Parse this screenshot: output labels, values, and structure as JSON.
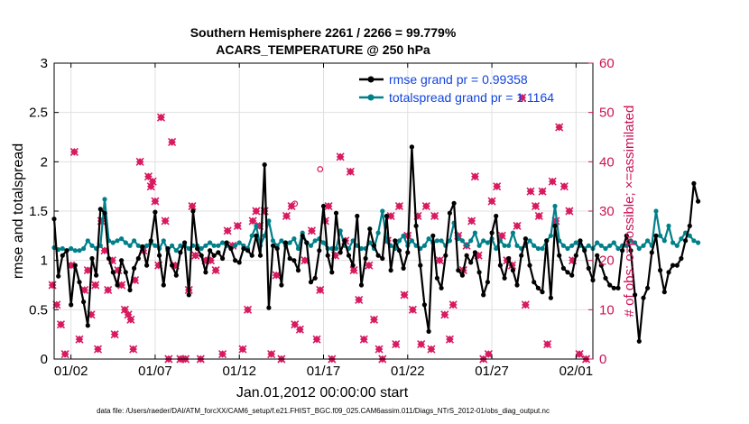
{
  "chart_data": {
    "type": "line",
    "title_line1": "Southern Hemisphere 2261 / 2266 = 99.779%",
    "title_line2": "ACARS_TEMPERATURE @ 250 hPa",
    "ylabel_left": "rmse and totalspread",
    "ylabel_right": "# of obs: o=possible; ×=assimilated",
    "xlabel": "Jan.01,2012 00:00:00 start",
    "footnote": "data file: /Users/raeder/DAI/ATM_forcXX/CAM6_setup/f.e21.FHIST_BGC.f09_025.CAM6assim.011/Diags_NTrS_2012-01/obs_diag_output.nc",
    "x_range_days": [
      0,
      32
    ],
    "ylim_left": [
      0,
      3
    ],
    "ylim_right": [
      0,
      60
    ],
    "x_ticks": [
      {
        "day": 1,
        "label": "01/02"
      },
      {
        "day": 6,
        "label": "01/07"
      },
      {
        "day": 11,
        "label": "01/12"
      },
      {
        "day": 16,
        "label": "01/17"
      },
      {
        "day": 21,
        "label": "01/22"
      },
      {
        "day": 26,
        "label": "01/27"
      },
      {
        "day": 31,
        "label": "02/01"
      }
    ],
    "y_ticks_left": [
      "0",
      "0.5",
      "1",
      "1.5",
      "2",
      "2.5",
      "3"
    ],
    "y_ticks_right": [
      "0",
      "10",
      "20",
      "30",
      "40",
      "50",
      "60"
    ],
    "legend": [
      {
        "name": "rmse grand pr = 0.99358",
        "color": "#000000"
      },
      {
        "name": "totalspread grand pr = 1.1164",
        "color": "#00808a"
      }
    ],
    "colors": {
      "rmse": "#000000",
      "spread": "#00808a",
      "obs": "#d81b60",
      "right_axis": "#cc1155",
      "legend_text": "#1144dd",
      "grid": "#e0e0e0"
    },
    "series": [
      {
        "name": "rmse",
        "x_start_day": 0,
        "x_step_day": 0.25,
        "values": [
          1.42,
          0.84,
          1.05,
          1.1,
          0.55,
          0.95,
          0.78,
          0.58,
          0.34,
          1.02,
          0.85,
          1.52,
          1.48,
          1.02,
          0.88,
          0.75,
          1.0,
          0.88,
          0.7,
          0.92,
          1.02,
          1.14,
          0.95,
          1.2,
          1.49,
          1.05,
          0.75,
          1.12,
          0.95,
          0.85,
          1.08,
          1.18,
          0.65,
          1.5,
          1.12,
          1.05,
          0.88,
          1.1,
          1.05,
          1.08,
          1.02,
          1.18,
          1.12,
          1.0,
          0.98,
          1.12,
          1.1,
          1.05,
          1.25,
          1.05,
          1.97,
          0.52,
          1.15,
          1.12,
          0.75,
          1.18,
          1.02,
          1.0,
          0.9,
          1.25,
          1.18,
          0.78,
          0.82,
          1.1,
          1.55,
          1.05,
          0.88,
          1.48,
          1.08,
          1.2,
          1.05,
          0.95,
          1.45,
          0.75,
          1.02,
          1.32,
          1.15,
          1.05,
          1.02,
          1.45,
          0.9,
          1.2,
          1.1,
          0.92,
          1.08,
          2.15,
          1.35,
          0.95,
          0.55,
          0.28,
          1.25,
          0.82,
          0.72,
          1.05,
          1.48,
          1.58,
          0.9,
          0.85,
          1.05,
          0.98,
          1.08,
          0.88,
          0.65,
          0.78,
          1.28,
          1.45,
          0.95,
          0.82,
          1.02,
          0.9,
          0.75,
          1.05,
          1.22,
          0.95,
          0.78,
          0.72,
          0.68,
          1.2,
          0.62,
          1.35,
          1.05,
          0.92,
          0.88,
          0.85,
          1.05,
          1.2,
          1.1,
          0.92,
          0.8,
          1.05,
          0.95,
          0.82,
          0.75,
          0.72,
          0.72,
          1.1,
          1.25,
          1.1,
          0.65,
          0.18,
          0.62,
          0.72,
          1.08,
          1.25,
          0.9,
          0.68,
          0.88,
          0.95,
          0.95,
          1.02,
          1.2,
          1.35,
          1.78,
          1.6
        ]
      },
      {
        "name": "totalspread",
        "x_start_day": 0,
        "x_step_day": 0.25,
        "values": [
          1.13,
          1.11,
          1.12,
          1.1,
          1.12,
          1.1,
          1.1,
          1.12,
          1.2,
          1.15,
          1.12,
          1.15,
          1.62,
          1.2,
          1.18,
          1.2,
          1.22,
          1.18,
          1.15,
          1.2,
          1.15,
          1.12,
          1.15,
          1.18,
          1.15,
          1.12,
          1.2,
          1.1,
          1.15,
          1.1,
          1.15,
          1.15,
          1.12,
          1.15,
          1.15,
          1.12,
          1.15,
          1.18,
          1.15,
          1.15,
          1.18,
          1.15,
          1.12,
          1.15,
          1.18,
          1.15,
          1.12,
          1.25,
          1.35,
          1.15,
          1.25,
          1.4,
          1.2,
          1.15,
          1.2,
          1.15,
          1.18,
          1.22,
          1.12,
          1.28,
          1.18,
          1.15,
          1.2,
          1.22,
          1.18,
          1.12,
          1.12,
          1.12,
          1.3,
          1.15,
          1.12,
          1.2,
          1.15,
          1.12,
          1.12,
          1.18,
          1.12,
          1.28,
          1.5,
          1.2,
          1.15,
          1.12,
          1.2,
          1.25,
          1.15,
          1.2,
          1.15,
          1.12,
          1.15,
          1.22,
          1.18,
          1.2,
          1.2,
          1.15,
          1.2,
          1.38,
          1.22,
          1.2,
          1.15,
          1.2,
          1.28,
          1.15,
          1.2,
          1.18,
          1.22,
          1.12,
          1.2,
          1.15,
          1.15,
          1.28,
          1.15,
          1.12,
          1.15,
          1.2,
          1.15,
          1.12,
          1.12,
          1.2,
          1.25,
          1.55,
          1.2,
          1.15,
          1.12,
          1.15,
          1.18,
          1.15,
          1.12,
          1.15,
          1.12,
          1.18,
          1.15,
          1.12,
          1.15,
          1.18,
          1.12,
          1.15,
          1.15,
          1.2,
          1.18,
          1.12,
          1.15,
          1.2,
          1.15,
          1.5,
          1.25,
          1.2,
          1.35,
          1.18,
          1.15,
          1.22,
          1.28,
          1.25,
          1.2,
          1.18
        ]
      },
      {
        "name": "obs_assimilated",
        "points": [
          [
            -0.1,
            15
          ],
          [
            0.15,
            11
          ],
          [
            0.4,
            7
          ],
          [
            0.65,
            1
          ],
          [
            1.0,
            19
          ],
          [
            1.2,
            42
          ],
          [
            1.5,
            4
          ],
          [
            1.8,
            14
          ],
          [
            2.0,
            18
          ],
          [
            2.2,
            9
          ],
          [
            2.45,
            15
          ],
          [
            2.6,
            2
          ],
          [
            2.8,
            28
          ],
          [
            3.0,
            22
          ],
          [
            3.2,
            14
          ],
          [
            3.45,
            20
          ],
          [
            3.6,
            5
          ],
          [
            3.8,
            18
          ],
          [
            4.0,
            15
          ],
          [
            4.2,
            10
          ],
          [
            4.4,
            9
          ],
          [
            4.55,
            8
          ],
          [
            4.7,
            2
          ],
          [
            4.8,
            16
          ],
          [
            5.1,
            40
          ],
          [
            5.3,
            22
          ],
          [
            5.6,
            37
          ],
          [
            5.75,
            35
          ],
          [
            5.85,
            36
          ],
          [
            6.0,
            32
          ],
          [
            6.2,
            19
          ],
          [
            6.35,
            49
          ],
          [
            6.6,
            28
          ],
          [
            6.8,
            0
          ],
          [
            7.0,
            44
          ],
          [
            7.2,
            19
          ],
          [
            7.5,
            0
          ],
          [
            7.8,
            0
          ],
          [
            8.0,
            14
          ],
          [
            8.2,
            31
          ],
          [
            8.4,
            21
          ],
          [
            8.7,
            0
          ],
          [
            9.0,
            20
          ],
          [
            9.3,
            20
          ],
          [
            9.6,
            18
          ],
          [
            10.0,
            1
          ],
          [
            10.3,
            26
          ],
          [
            10.6,
            23
          ],
          [
            10.9,
            27
          ],
          [
            11.2,
            2
          ],
          [
            11.5,
            10
          ],
          [
            11.8,
            28
          ],
          [
            12.0,
            30
          ],
          [
            12.2,
            27
          ],
          [
            12.5,
            30
          ],
          [
            12.9,
            1
          ],
          [
            13.2,
            17
          ],
          [
            13.5,
            0
          ],
          [
            13.8,
            29
          ],
          [
            14.1,
            31
          ],
          [
            14.3,
            7
          ],
          [
            14.6,
            6
          ],
          [
            14.9,
            20
          ],
          [
            15.3,
            26
          ],
          [
            15.6,
            4
          ],
          [
            15.8,
            14
          ],
          [
            16.1,
            28
          ],
          [
            16.3,
            31
          ],
          [
            16.5,
            0
          ],
          [
            16.7,
            21
          ],
          [
            17.0,
            41
          ],
          [
            17.3,
            24
          ],
          [
            17.6,
            38
          ],
          [
            17.8,
            18
          ],
          [
            18.1,
            12
          ],
          [
            18.4,
            4
          ],
          [
            18.7,
            19
          ],
          [
            19.0,
            8
          ],
          [
            19.3,
            2
          ],
          [
            19.5,
            0
          ],
          [
            19.8,
            24
          ],
          [
            20.0,
            29
          ],
          [
            20.3,
            3
          ],
          [
            20.5,
            31
          ],
          [
            20.8,
            13
          ],
          [
            21.0,
            25
          ],
          [
            21.3,
            10
          ],
          [
            21.6,
            29
          ],
          [
            21.8,
            3
          ],
          [
            22.1,
            31
          ],
          [
            22.4,
            2
          ],
          [
            22.6,
            29
          ],
          [
            22.9,
            20
          ],
          [
            23.2,
            9
          ],
          [
            23.5,
            4
          ],
          [
            23.7,
            11
          ],
          [
            24.0,
            25
          ],
          [
            24.3,
            18
          ],
          [
            24.5,
            23
          ],
          [
            24.8,
            28
          ],
          [
            25.0,
            37
          ],
          [
            25.2,
            21
          ],
          [
            25.5,
            0
          ],
          [
            25.8,
            1
          ],
          [
            26.0,
            32
          ],
          [
            26.3,
            35
          ],
          [
            26.6,
            25
          ],
          [
            26.9,
            20
          ],
          [
            27.2,
            19
          ],
          [
            27.5,
            27
          ],
          [
            27.8,
            53
          ],
          [
            28.0,
            11
          ],
          [
            28.3,
            34
          ],
          [
            28.6,
            31
          ],
          [
            28.8,
            29
          ],
          [
            29.0,
            34
          ],
          [
            29.3,
            3
          ],
          [
            29.6,
            36
          ],
          [
            29.8,
            28
          ],
          [
            30.0,
            47
          ],
          [
            30.3,
            35
          ],
          [
            30.6,
            30
          ],
          [
            30.8,
            20
          ],
          [
            31.2,
            1
          ],
          [
            31.6,
            0
          ]
        ]
      },
      {
        "name": "obs_possible",
        "points": [
          [
            14.3,
            31.5
          ],
          [
            15.8,
            38.5
          ]
        ]
      }
    ]
  }
}
